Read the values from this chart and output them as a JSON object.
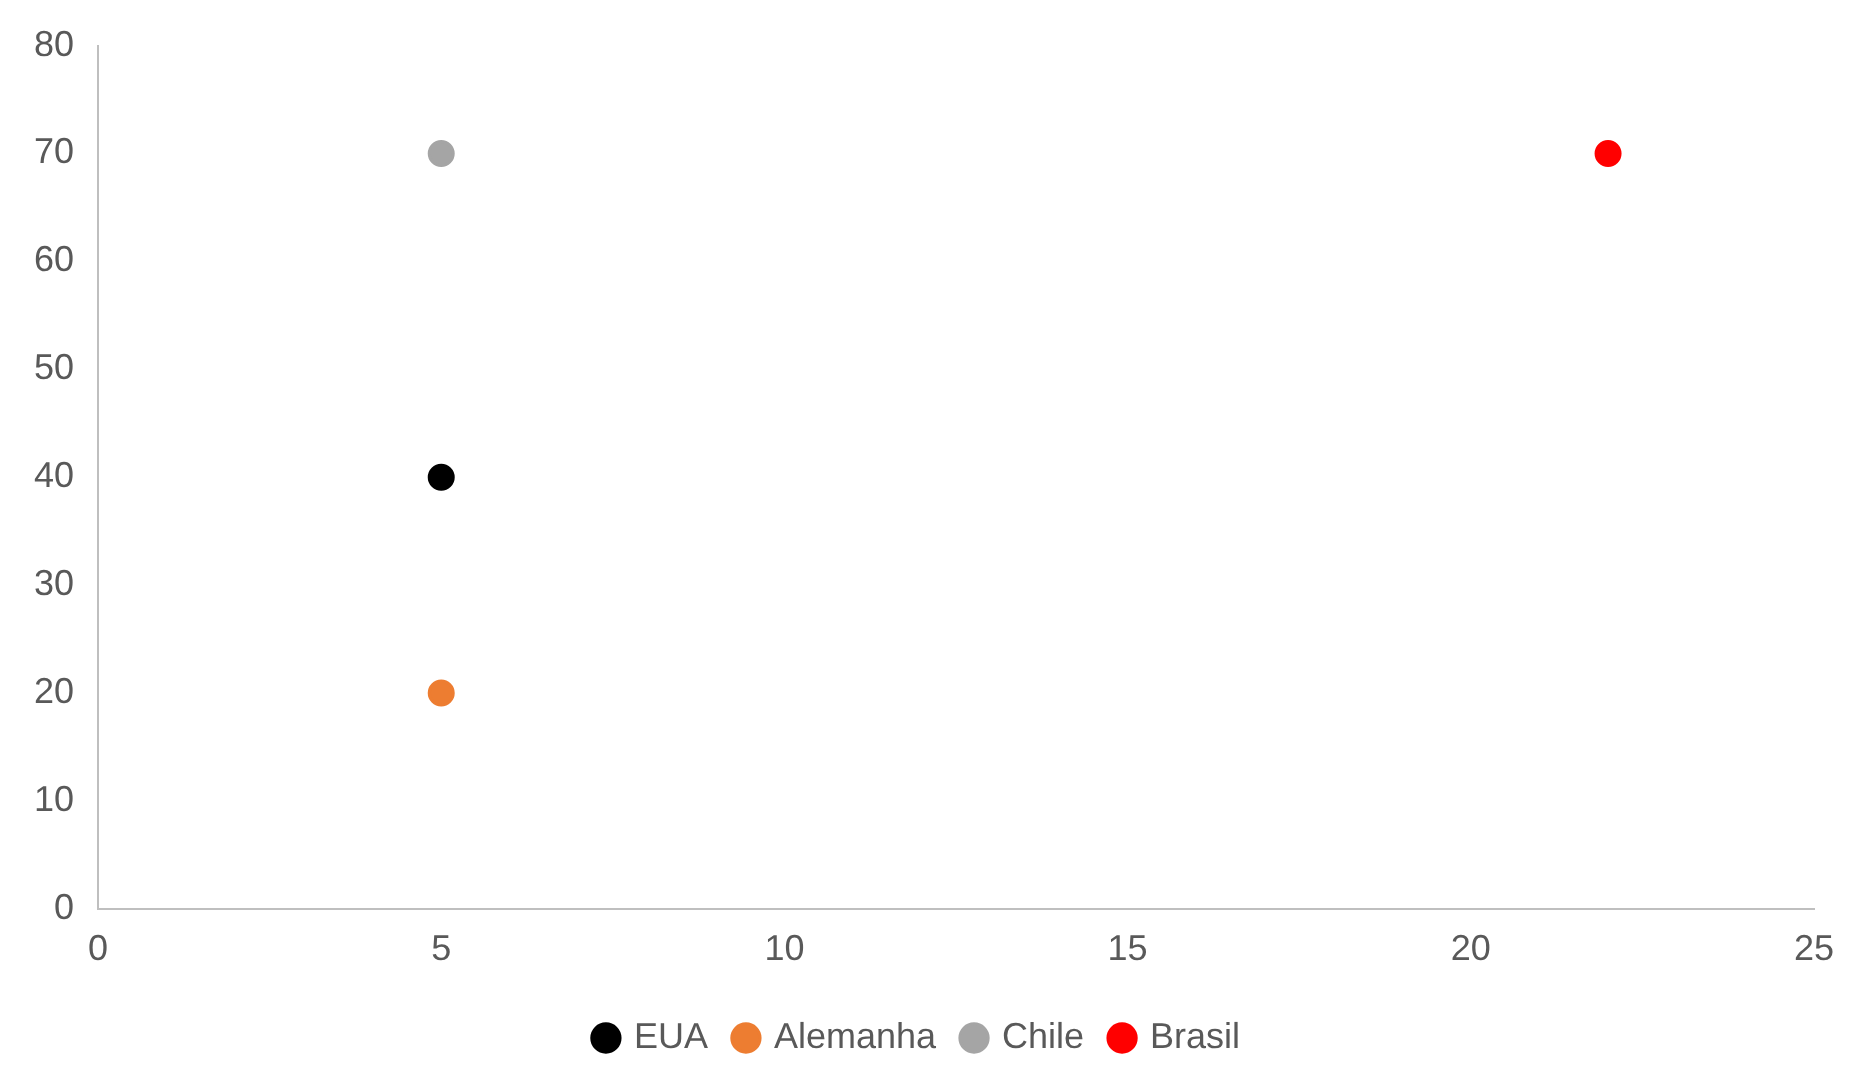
{
  "chart_data": {
    "type": "scatter",
    "x": [
      5,
      22
    ],
    "xlim": [
      0,
      25
    ],
    "xticks": [
      0,
      5,
      10,
      15,
      20,
      25
    ],
    "ylim": [
      0,
      80
    ],
    "yticks": [
      0,
      10,
      20,
      30,
      40,
      50,
      60,
      70,
      80
    ],
    "grid": false,
    "legend": "bottom",
    "marker": "circle",
    "series": [
      {
        "name": "EUA",
        "color": "#000000",
        "values": [
          40,
          null
        ]
      },
      {
        "name": "Alemanha",
        "color": "#ed7d31",
        "values": [
          20,
          null
        ]
      },
      {
        "name": "Chile",
        "color": "#a5a5a5",
        "values": [
          70,
          null
        ]
      },
      {
        "name": "Brasil",
        "color": "#ff0000",
        "values": [
          null,
          70
        ]
      }
    ]
  }
}
